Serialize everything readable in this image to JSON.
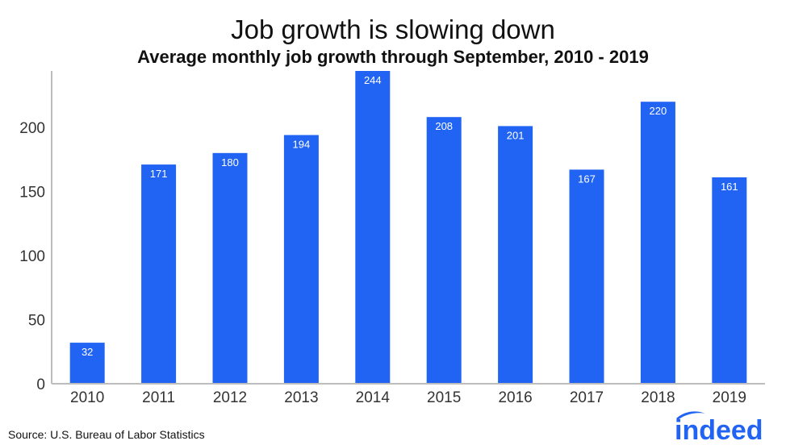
{
  "chart_data": {
    "type": "bar",
    "title": "Job growth is slowing down",
    "subtitle": "Average monthly job growth through September, 2010 - 2019",
    "categories": [
      "2010",
      "2011",
      "2012",
      "2013",
      "2014",
      "2015",
      "2016",
      "2017",
      "2018",
      "2019"
    ],
    "values": [
      32,
      171,
      180,
      194,
      244,
      208,
      201,
      167,
      220,
      161
    ],
    "data_labels": [
      "32",
      "171",
      "180",
      "194",
      "244",
      "208",
      "201",
      "167",
      "220",
      "161"
    ],
    "yticks": [
      0,
      50,
      100,
      150,
      200
    ],
    "ylim": [
      0,
      244
    ],
    "xlabel": "",
    "ylabel": "",
    "grid": false,
    "bar_color": "#2164f3"
  },
  "source": "Source: U.S. Bureau of Labor Statistics",
  "logo": {
    "text": "indeed",
    "color": "#2164f3"
  }
}
